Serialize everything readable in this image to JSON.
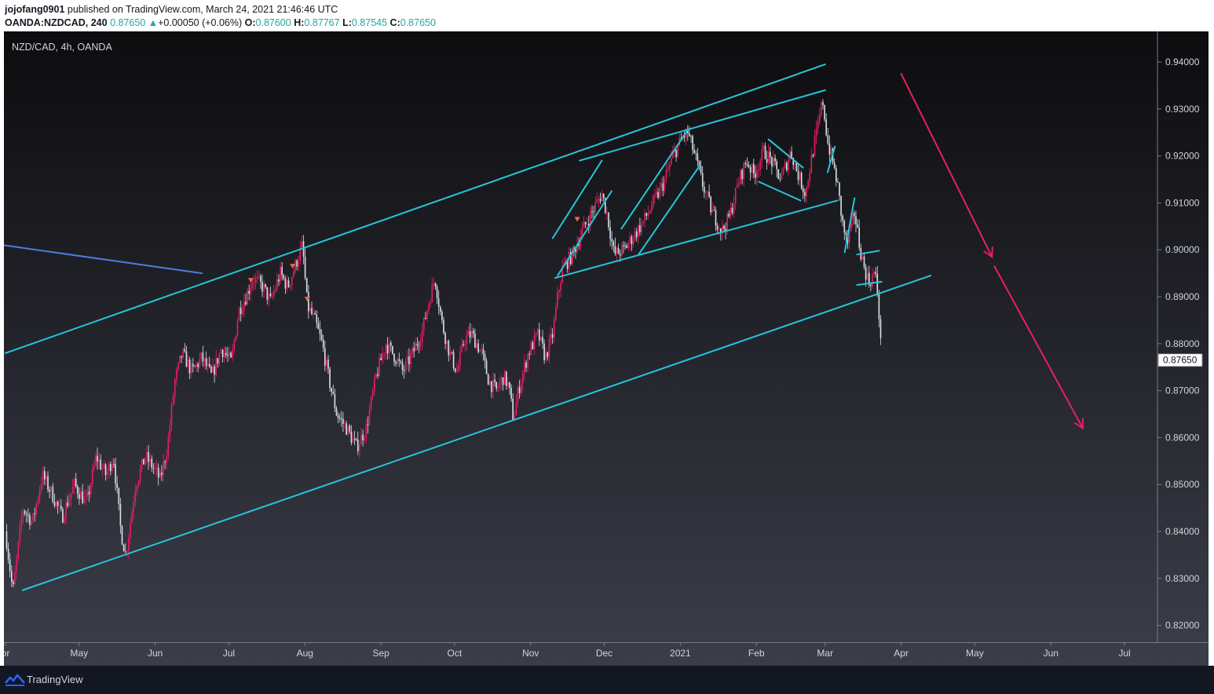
{
  "header": {
    "publisher": "jojofang0901",
    "published_text": "published on TradingView.com, March 24, 2021 21:46:46 UTC",
    "symbol": "OANDA:NZDCAD, 240",
    "last": "0.87650",
    "change_arrow": "▲",
    "change": "+0.00050 (+0.06%)",
    "o_label": "O:",
    "o_value": "0.87600",
    "h_label": "H:",
    "h_value": "0.87767",
    "l_label": "L:",
    "l_value": "0.87545",
    "c_label": "C:",
    "c_value": "0.87650"
  },
  "footer": {
    "brand": "TradingView",
    "logo_icon": "tradingview-logo-icon"
  },
  "colors": {
    "bg_top": "#0d0d0f",
    "bg_bottom": "#3b3d49",
    "candle_up": "#e91e63",
    "candle_down": "#d8e4e8",
    "channel": "#26c6da",
    "trend_blue": "#4f7ae0",
    "forecast_arrow": "#e91e63",
    "axis_text": "#d1d4dc"
  },
  "chart_data": {
    "type": "candlestick",
    "title": "NZD/CAD, 4h, OANDA",
    "price_label": "0.87650",
    "y_ticks": [
      "0.94000",
      "0.93000",
      "0.92000",
      "0.91000",
      "0.90000",
      "0.89000",
      "0.88000",
      "0.87000",
      "0.86000",
      "0.85000",
      "0.84000",
      "0.83000",
      "0.82000"
    ],
    "ylim": [
      0.8155,
      0.9445
    ],
    "x_ticks": [
      {
        "label": "pr",
        "date": "2020-04-01"
      },
      {
        "label": "May",
        "date": "2020-05-01"
      },
      {
        "label": "Jun",
        "date": "2020-06-01"
      },
      {
        "label": "Jul",
        "date": "2020-07-01"
      },
      {
        "label": "Aug",
        "date": "2020-08-01"
      },
      {
        "label": "Sep",
        "date": "2020-09-01"
      },
      {
        "label": "Oct",
        "date": "2020-10-01"
      },
      {
        "label": "Nov",
        "date": "2020-11-01"
      },
      {
        "label": "Dec",
        "date": "2020-12-01"
      },
      {
        "label": "2021",
        "date": "2021-01-01"
      },
      {
        "label": "Feb",
        "date": "2021-02-01"
      },
      {
        "label": "Mar",
        "date": "2021-03-01"
      },
      {
        "label": "Apr",
        "date": "2021-04-01"
      },
      {
        "label": "May",
        "date": "2021-05-01"
      },
      {
        "label": "Jun",
        "date": "2021-06-01"
      },
      {
        "label": "Jul",
        "date": "2021-07-01"
      }
    ],
    "price_path": [
      [
        "2020-04-01",
        0.84
      ],
      [
        "2020-04-04",
        0.827
      ],
      [
        "2020-04-08",
        0.845
      ],
      [
        "2020-04-12",
        0.842
      ],
      [
        "2020-04-16",
        0.852
      ],
      [
        "2020-04-20",
        0.848
      ],
      [
        "2020-04-24",
        0.843
      ],
      [
        "2020-04-29",
        0.85
      ],
      [
        "2020-05-04",
        0.846
      ],
      [
        "2020-05-08",
        0.856
      ],
      [
        "2020-05-12",
        0.852
      ],
      [
        "2020-05-15",
        0.856
      ],
      [
        "2020-05-18",
        0.84
      ],
      [
        "2020-05-20",
        0.835
      ],
      [
        "2020-05-24",
        0.85
      ],
      [
        "2020-05-28",
        0.856
      ],
      [
        "2020-06-01",
        0.853
      ],
      [
        "2020-06-03",
        0.851
      ],
      [
        "2020-06-06",
        0.858
      ],
      [
        "2020-06-09",
        0.872
      ],
      [
        "2020-06-12",
        0.878
      ],
      [
        "2020-06-16",
        0.874
      ],
      [
        "2020-06-20",
        0.877
      ],
      [
        "2020-06-24",
        0.873
      ],
      [
        "2020-06-28",
        0.879
      ],
      [
        "2020-07-02",
        0.876
      ],
      [
        "2020-07-05",
        0.887
      ],
      [
        "2020-07-08",
        0.89
      ],
      [
        "2020-07-11",
        0.894
      ],
      [
        "2020-07-15",
        0.892
      ],
      [
        "2020-07-18",
        0.889
      ],
      [
        "2020-07-22",
        0.895
      ],
      [
        "2020-07-25",
        0.892
      ],
      [
        "2020-07-29",
        0.898
      ],
      [
        "2020-07-31",
        0.901
      ],
      [
        "2020-08-02",
        0.888
      ],
      [
        "2020-08-05",
        0.885
      ],
      [
        "2020-08-08",
        0.88
      ],
      [
        "2020-08-11",
        0.872
      ],
      [
        "2020-08-14",
        0.865
      ],
      [
        "2020-08-18",
        0.862
      ],
      [
        "2020-08-22",
        0.858
      ],
      [
        "2020-08-26",
        0.862
      ],
      [
        "2020-08-30",
        0.873
      ],
      [
        "2020-09-03",
        0.88
      ],
      [
        "2020-09-07",
        0.877
      ],
      [
        "2020-09-10",
        0.874
      ],
      [
        "2020-09-14",
        0.878
      ],
      [
        "2020-09-18",
        0.883
      ],
      [
        "2020-09-21",
        0.89
      ],
      [
        "2020-09-23",
        0.894
      ],
      [
        "2020-09-26",
        0.884
      ],
      [
        "2020-09-29",
        0.878
      ],
      [
        "2020-10-02",
        0.874
      ],
      [
        "2020-10-05",
        0.881
      ],
      [
        "2020-10-08",
        0.882
      ],
      [
        "2020-10-12",
        0.878
      ],
      [
        "2020-10-15",
        0.872
      ],
      [
        "2020-10-18",
        0.87
      ],
      [
        "2020-10-21",
        0.873
      ],
      [
        "2020-10-23",
        0.871
      ],
      [
        "2020-10-25",
        0.864
      ],
      [
        "2020-10-27",
        0.87
      ],
      [
        "2020-10-31",
        0.878
      ],
      [
        "2020-11-04",
        0.882
      ],
      [
        "2020-11-07",
        0.877
      ],
      [
        "2020-11-10",
        0.882
      ],
      [
        "2020-11-12",
        0.89
      ],
      [
        "2020-11-14",
        0.896
      ],
      [
        "2020-11-18",
        0.899
      ],
      [
        "2020-11-22",
        0.904
      ],
      [
        "2020-11-26",
        0.908
      ],
      [
        "2020-11-30",
        0.912
      ],
      [
        "2020-12-02",
        0.908
      ],
      [
        "2020-12-05",
        0.899
      ],
      [
        "2020-12-09",
        0.9
      ],
      [
        "2020-12-13",
        0.903
      ],
      [
        "2020-12-17",
        0.906
      ],
      [
        "2020-12-21",
        0.91
      ],
      [
        "2020-12-25",
        0.914
      ],
      [
        "2020-12-29",
        0.92
      ],
      [
        "2021-01-02",
        0.924
      ],
      [
        "2021-01-04",
        0.925
      ],
      [
        "2021-01-07",
        0.92
      ],
      [
        "2021-01-10",
        0.914
      ],
      [
        "2021-01-14",
        0.908
      ],
      [
        "2021-01-18",
        0.904
      ],
      [
        "2021-01-21",
        0.907
      ],
      [
        "2021-01-25",
        0.915
      ],
      [
        "2021-01-28",
        0.919
      ],
      [
        "2021-01-31",
        0.916
      ],
      [
        "2021-02-04",
        0.921
      ],
      [
        "2021-02-07",
        0.919
      ],
      [
        "2021-02-11",
        0.915
      ],
      [
        "2021-02-15",
        0.921
      ],
      [
        "2021-02-18",
        0.916
      ],
      [
        "2021-02-21",
        0.912
      ],
      [
        "2021-02-24",
        0.921
      ],
      [
        "2021-02-26",
        0.926
      ],
      [
        "2021-02-28",
        0.932
      ],
      [
        "2021-03-02",
        0.923
      ],
      [
        "2021-03-04",
        0.919
      ],
      [
        "2021-03-06",
        0.914
      ],
      [
        "2021-03-08",
        0.906
      ],
      [
        "2021-03-10",
        0.901
      ],
      [
        "2021-03-12",
        0.906
      ],
      [
        "2021-03-13",
        0.908
      ],
      [
        "2021-03-15",
        0.901
      ],
      [
        "2021-03-17",
        0.896
      ],
      [
        "2021-03-19",
        0.893
      ],
      [
        "2021-03-21",
        0.895
      ],
      [
        "2021-03-22",
        0.893
      ],
      [
        "2021-03-23",
        0.886
      ],
      [
        "2021-03-24",
        0.8765
      ]
    ],
    "lines": [
      {
        "name": "upper-channel-line",
        "color": "channel",
        "points": [
          [
            "2020-04-01",
            0.878
          ],
          [
            "2021-03-01",
            0.9395
          ]
        ]
      },
      {
        "name": "lower-channel-line",
        "color": "channel",
        "points": [
          [
            "2020-04-08",
            0.8275
          ],
          [
            "2021-04-13",
            0.8945
          ]
        ]
      },
      {
        "name": "inner-upper-line",
        "color": "channel",
        "points": [
          [
            "2020-11-21",
            0.919
          ],
          [
            "2021-03-01",
            0.934
          ]
        ]
      },
      {
        "name": "inner-lower-line",
        "color": "channel",
        "points": [
          [
            "2020-11-11",
            0.894
          ],
          [
            "2021-03-06",
            0.9105
          ]
        ]
      },
      {
        "name": "wedge1-upper",
        "color": "channel",
        "points": [
          [
            "2020-11-10",
            0.9025
          ],
          [
            "2020-11-30",
            0.919
          ]
        ]
      },
      {
        "name": "wedge1-lower",
        "color": "channel",
        "points": [
          [
            "2020-11-12",
            0.8945
          ],
          [
            "2020-12-04",
            0.9125
          ]
        ]
      },
      {
        "name": "wedge2-upper",
        "color": "channel",
        "points": [
          [
            "2020-12-08",
            0.9045
          ],
          [
            "2021-01-04",
            0.9255
          ]
        ]
      },
      {
        "name": "wedge2-lower",
        "color": "channel",
        "points": [
          [
            "2020-12-15",
            0.899
          ],
          [
            "2021-01-09",
            0.918
          ]
        ]
      },
      {
        "name": "flag-feb-upper",
        "color": "channel",
        "points": [
          [
            "2021-02-06",
            0.9235
          ],
          [
            "2021-02-20",
            0.9175
          ]
        ]
      },
      {
        "name": "flag-feb-lower",
        "color": "channel",
        "points": [
          [
            "2021-02-02",
            0.9145
          ],
          [
            "2021-02-19",
            0.9105
          ]
        ]
      },
      {
        "name": "flag-mar-1",
        "color": "channel",
        "points": [
          [
            "2021-03-02",
            0.9165
          ],
          [
            "2021-03-05",
            0.922
          ]
        ]
      },
      {
        "name": "flag-mar-2",
        "color": "channel",
        "points": [
          [
            "2021-03-09",
            0.8995
          ],
          [
            "2021-03-13",
            0.911
          ]
        ]
      },
      {
        "name": "box-upper",
        "color": "channel",
        "points": [
          [
            "2021-03-14",
            0.899
          ],
          [
            "2021-03-23",
            0.8998
          ]
        ]
      },
      {
        "name": "box-lower",
        "color": "channel",
        "points": [
          [
            "2021-03-14",
            0.8925
          ],
          [
            "2021-03-24",
            0.8932
          ]
        ]
      },
      {
        "name": "blue-trend-line",
        "color": "trend_blue",
        "points": [
          [
            "2020-03-31",
            0.901
          ],
          [
            "2020-06-20",
            0.895
          ]
        ]
      }
    ],
    "arrows": [
      {
        "name": "forecast-arrow-1",
        "color": "forecast_arrow",
        "points": [
          [
            "2021-04-01",
            0.9375
          ],
          [
            "2021-05-08",
            0.8985
          ]
        ]
      },
      {
        "name": "forecast-arrow-2",
        "color": "forecast_arrow",
        "points": [
          [
            "2021-05-09",
            0.8965
          ],
          [
            "2021-06-14",
            0.862
          ]
        ]
      }
    ],
    "markers": [
      {
        "date": "2020-07-10",
        "price": 0.8935
      },
      {
        "date": "2020-07-27",
        "price": 0.8965
      },
      {
        "date": "2020-08-02",
        "price": 0.8895
      },
      {
        "date": "2020-11-20",
        "price": 0.9065
      }
    ]
  }
}
